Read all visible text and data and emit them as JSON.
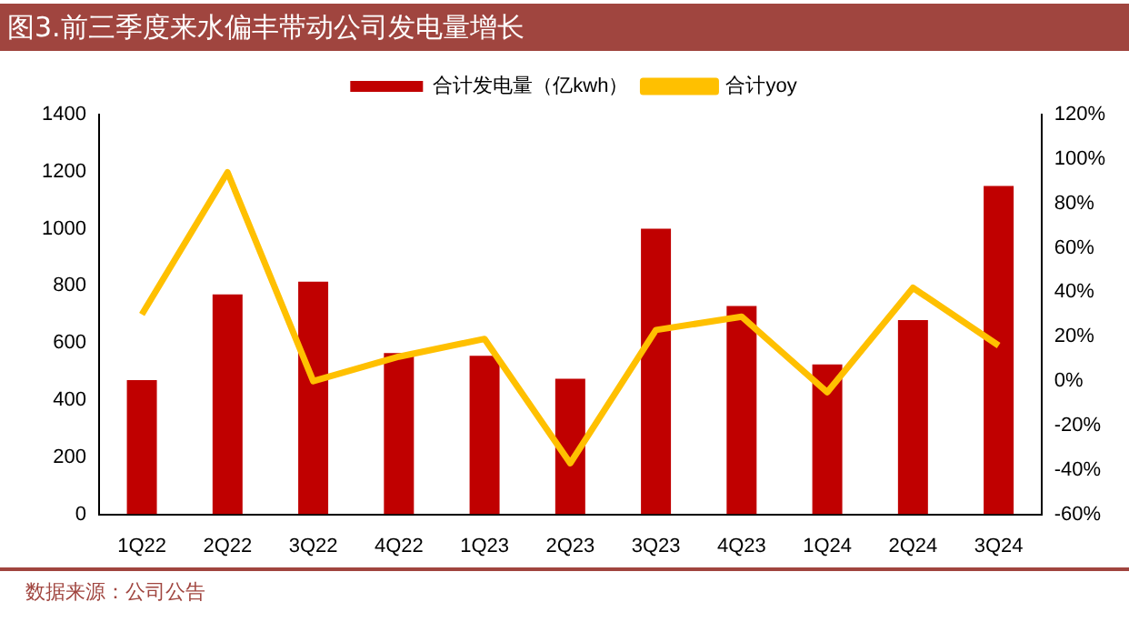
{
  "chart_data": {
    "type": "bar",
    "title": "图3.前三季度来水偏丰带动公司发电量增长",
    "annotations": [
      "数据来源：公司公告"
    ],
    "categories": [
      "1Q22",
      "2Q22",
      "3Q22",
      "4Q22",
      "1Q23",
      "2Q23",
      "3Q23",
      "4Q23",
      "1Q24",
      "2Q24",
      "3Q24"
    ],
    "series": [
      {
        "name": "合计发电量（亿kwh）",
        "color": "#c00000",
        "values": [
          470,
          770,
          815,
          565,
          555,
          475,
          1000,
          730,
          525,
          680,
          1150
        ]
      },
      {
        "name": "合计yoy",
        "type": "line",
        "axis": "y2",
        "color": "#ffc000",
        "values": [
          30,
          94,
          0,
          11,
          19,
          -37,
          23,
          29,
          -5,
          42,
          16
        ]
      }
    ],
    "ylim": [
      0,
      1400
    ],
    "yticks": [
      0,
      200,
      400,
      600,
      800,
      1000,
      1200,
      1400
    ],
    "y2lim": [
      -60,
      120
    ],
    "y2ticks": [
      {
        "value": -60,
        "label": "-60%"
      },
      {
        "value": -40,
        "label": "-40%"
      },
      {
        "value": -20,
        "label": "-20%"
      },
      {
        "value": 0,
        "label": "0%"
      },
      {
        "value": 20,
        "label": "20%"
      },
      {
        "value": 40,
        "label": "40%"
      },
      {
        "value": 60,
        "label": "60%"
      },
      {
        "value": 80,
        "label": "80%"
      },
      {
        "value": 100,
        "label": "100%"
      },
      {
        "value": 120,
        "label": "120%"
      }
    ],
    "grid": false,
    "legend": "top",
    "marker": "none"
  }
}
